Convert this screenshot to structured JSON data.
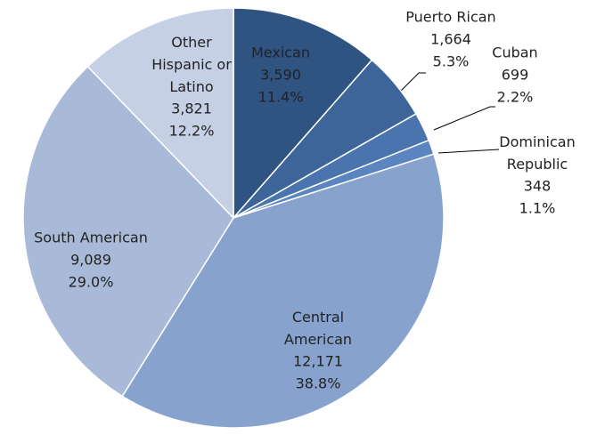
{
  "chart_data": {
    "type": "pie",
    "categories": [
      "Mexican",
      "Puerto Rican",
      "Cuban",
      "Dominican Republic",
      "Central American",
      "South American",
      "Other Hispanic or Latino"
    ],
    "values": [
      3590,
      1664,
      699,
      348,
      12171,
      9089,
      3821
    ],
    "value_labels": [
      "3,590",
      "1,664",
      "699",
      "348",
      "12,171",
      "9,089",
      "3,821"
    ],
    "percents": [
      11.4,
      5.3,
      2.2,
      1.1,
      38.8,
      29.0,
      12.2
    ],
    "percent_labels": [
      "11.4%",
      "5.3%",
      "2.2%",
      "1.1%",
      "38.8%",
      "29.0%",
      "12.2%"
    ],
    "colors": [
      "#2f5482",
      "#3d659a",
      "#4a74ae",
      "#5a85c0",
      "#87a3cd",
      "#a9b9d8",
      "#c5d0e5"
    ]
  }
}
